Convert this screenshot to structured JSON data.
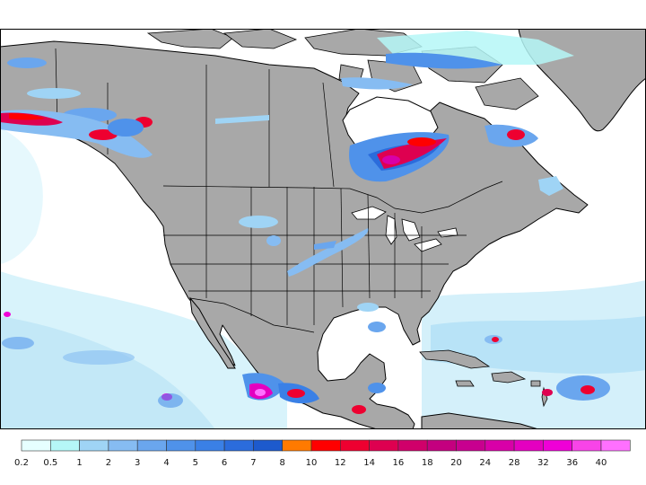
{
  "legend": {
    "labels": [
      "0.2",
      "0.5",
      "1",
      "2",
      "3",
      "4",
      "5",
      "6",
      "7",
      "8",
      "10",
      "12",
      "14",
      "16",
      "18",
      "20",
      "24",
      "28",
      "32",
      "36",
      "40"
    ],
    "colors": [
      "#e6ffff",
      "#b5f7f7",
      "#9fd4f5",
      "#86bcf2",
      "#6aa6ee",
      "#4f92ea",
      "#3a80e6",
      "#2b6cdc",
      "#1d5acd",
      "#ff7a00",
      "#ff0000",
      "#ee0030",
      "#de0050",
      "#d0006a",
      "#c4007f",
      "#c8008f",
      "#d800a8",
      "#e400c0",
      "#ef00d7",
      "#f844e8",
      "#ff70ff"
    ]
  },
  "map": {
    "ocean_color": "#ffffff",
    "land_color": "#a8a8a8"
  }
}
